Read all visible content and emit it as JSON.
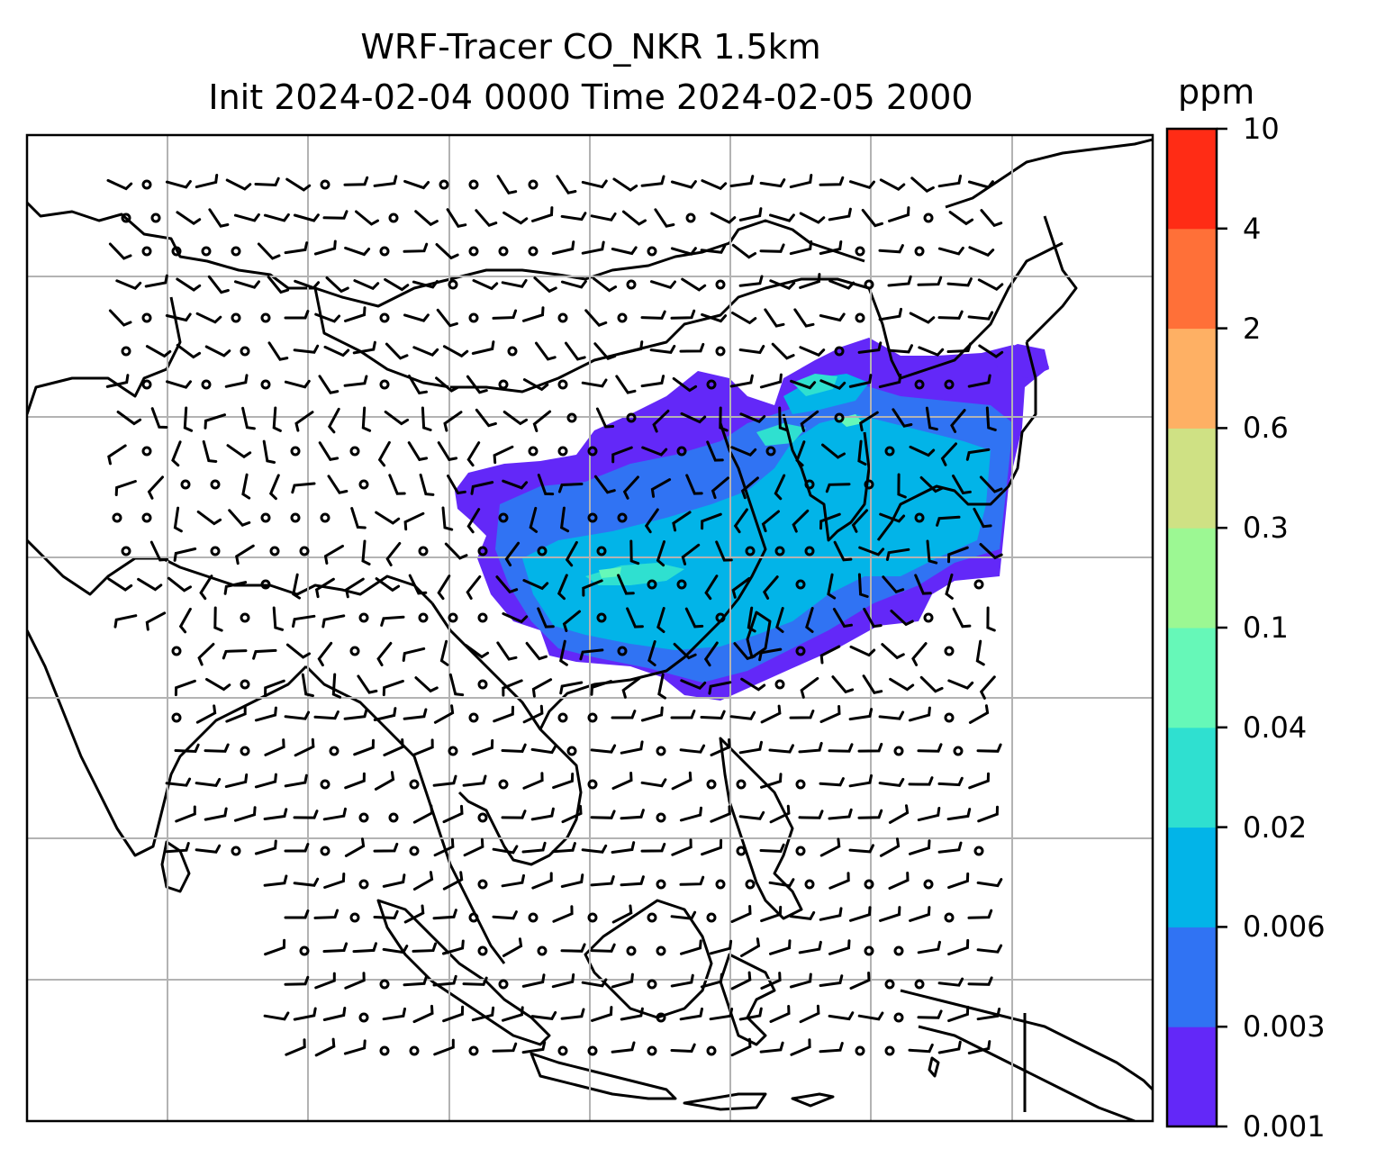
{
  "title": {
    "line1": "WRF-Tracer CO_NKR 1.5km",
    "line2": "Init 2024-02-04 0000 Time 2024-02-05 2000"
  },
  "colorbar": {
    "unit": "ppm",
    "levels": [
      "0.001",
      "0.003",
      "0.006",
      "0.02",
      "0.04",
      "0.1",
      "0.3",
      "0.6",
      "2",
      "4",
      "10"
    ],
    "colors": [
      "#6328f8",
      "#3073f3",
      "#02b4e8",
      "#2fe0d0",
      "#66f8b8",
      "#9cf893",
      "#cfe184",
      "#feb064",
      "#ff7038",
      "#ff2c15"
    ]
  },
  "map": {
    "gridlines": true,
    "coastline_color": "#000000",
    "grid_color": "#b3b3b3",
    "wind_barb_color": "#000000"
  }
}
